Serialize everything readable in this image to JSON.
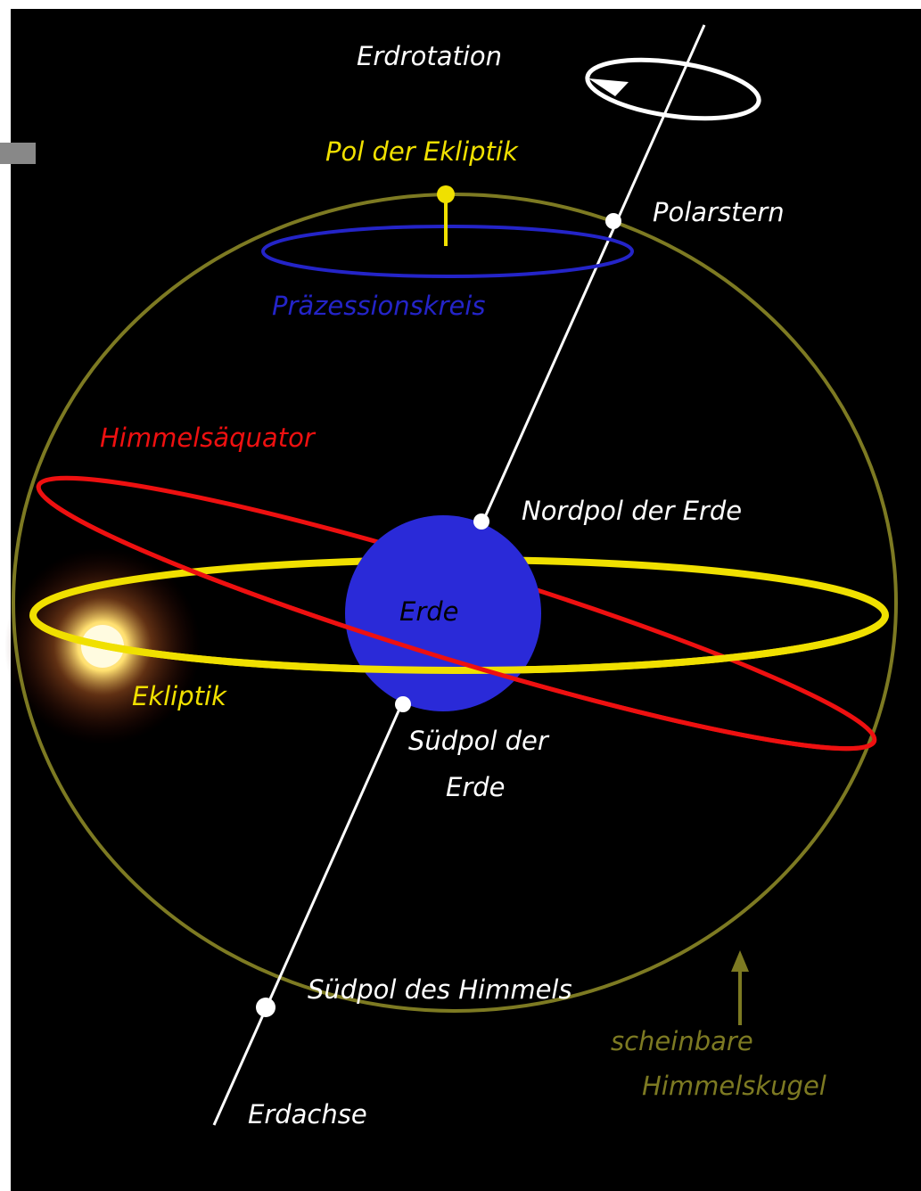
{
  "labels": {
    "rotation": "Erdrotation",
    "ecliptic_pole": "Pol der Ekliptik",
    "polaris": "Polarstern",
    "precession": "Präzessionskreis",
    "equator": "Himmelsäquator",
    "north_pole": "Nordpol der Erde",
    "earth": "Erde",
    "ecliptic": "Ekliptik",
    "south_pole": "Südpol der",
    "south_pole_2": "Erde",
    "south_celestial": "Südpol des Himmels",
    "sphere": "scheinbare",
    "sphere_2": "Himmelskugel",
    "axis": "Erdachse"
  }
}
